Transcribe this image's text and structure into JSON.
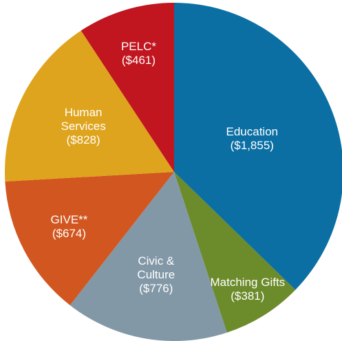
{
  "chart_data": {
    "type": "pie",
    "categories": [
      "Education",
      "Matching Gifts",
      "Civic & Culture",
      "GIVE**",
      "Human Services",
      "PELC*"
    ],
    "values": [
      1855,
      381,
      776,
      674,
      828,
      461
    ],
    "value_labels": [
      "($1,855)",
      "($381)",
      "($776)",
      "($674)",
      "($828)",
      "($461)"
    ],
    "colors": [
      "#0b6fa4",
      "#6c8b2b",
      "#8298a7",
      "#d2561f",
      "#dfa41d",
      "#c1161f"
    ]
  }
}
